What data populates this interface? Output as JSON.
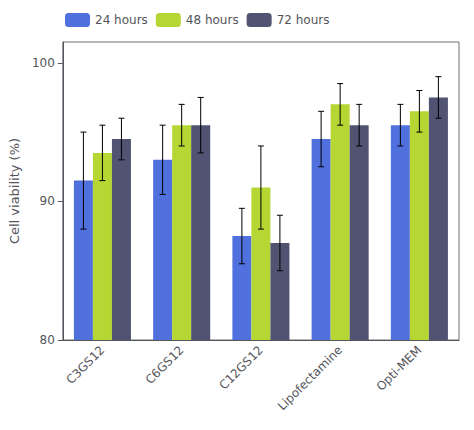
{
  "chart_data": {
    "type": "bar",
    "categories": [
      "C3GS12",
      "C6GS12",
      "C12GS12",
      "Lipofectamine",
      "Opti-MEM"
    ],
    "series": [
      {
        "name": "24 hours",
        "values": [
          91.5,
          93.0,
          87.5,
          94.5,
          95.5
        ],
        "errors": [
          3.5,
          2.5,
          2.0,
          2.0,
          1.5
        ]
      },
      {
        "name": "48 hours",
        "values": [
          93.5,
          95.5,
          91.0,
          97.0,
          96.5
        ],
        "errors": [
          2.0,
          1.5,
          3.0,
          1.5,
          1.5
        ]
      },
      {
        "name": "72 hours",
        "values": [
          94.5,
          95.5,
          87.0,
          95.5,
          97.5
        ],
        "errors": [
          1.5,
          2.0,
          2.0,
          1.5,
          1.5
        ]
      }
    ],
    "ylabel": "Cell viability (%)",
    "ylim": [
      80,
      101.5
    ],
    "yticks": [
      80,
      90,
      100
    ],
    "grid": false,
    "legend": "upper left"
  }
}
